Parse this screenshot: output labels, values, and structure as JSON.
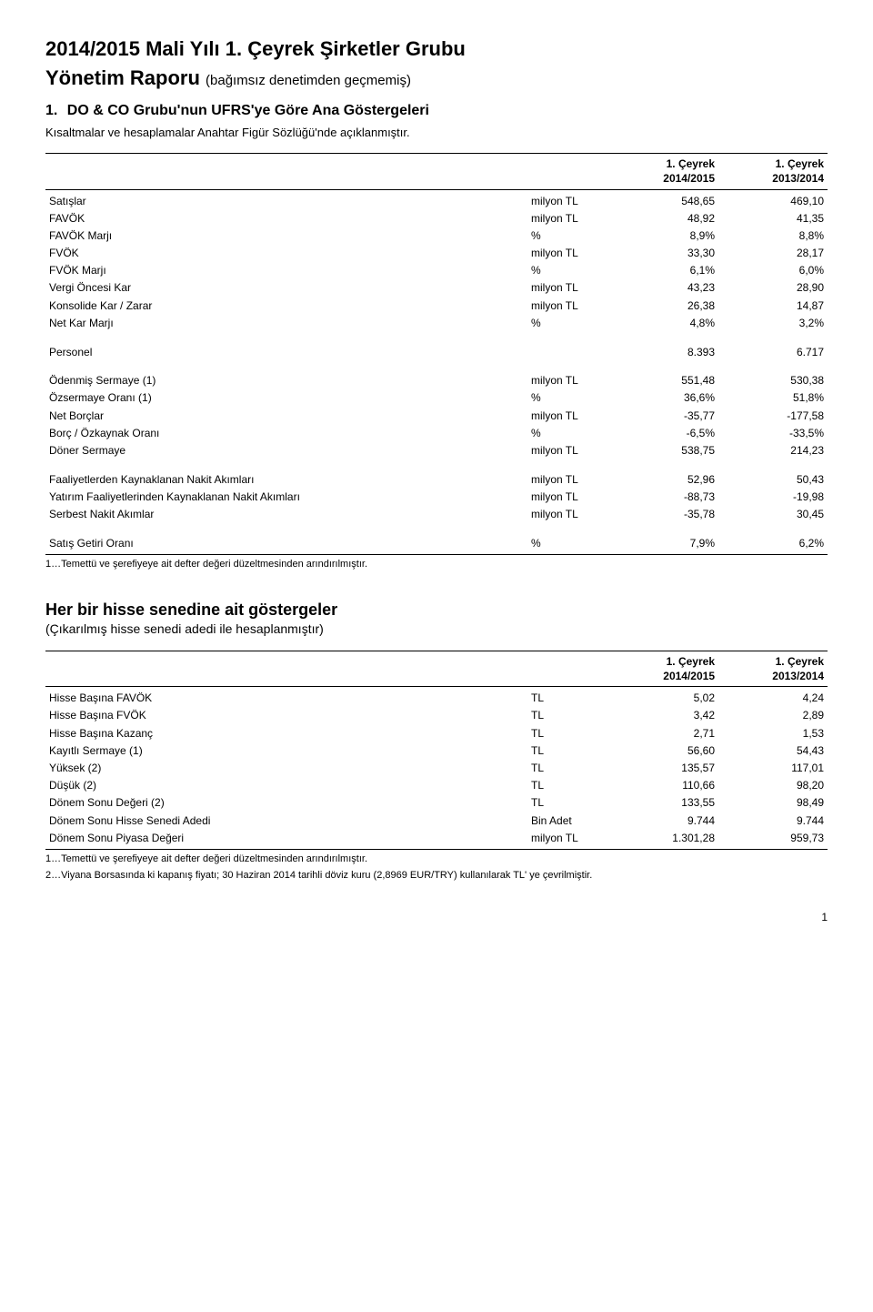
{
  "colors": {
    "text": "#000000",
    "background": "#ffffff",
    "rule": "#000000"
  },
  "fonts": {
    "body_family": "Verdana, Arial, sans-serif",
    "title_size_pt": 22,
    "body_size_pt": 12,
    "footnote_size_pt": 11
  },
  "title_line1": "2014/2015 Mali Yılı 1. Çeyrek Şirketler Grubu",
  "title_line2": "Yönetim Raporu",
  "title_paren": "(bağımsız denetimden geçmemiş)",
  "section_number": "1.",
  "section_title": "DO & CO Grubu'nun UFRS'ye Göre Ana Göstergeleri",
  "intro": "Kısaltmalar ve hesaplamalar Anahtar Figür Sözlüğü'nde açıklanmıştır.",
  "table1": {
    "header_col1": "",
    "header_col2_line1": "1. Çeyrek",
    "header_col2_line2": "2014/2015",
    "header_col3_line1": "1. Çeyrek",
    "header_col3_line2": "2013/2014",
    "groups": [
      {
        "rows": [
          {
            "label": "Satışlar",
            "unit": "milyon TL",
            "v1": "548,65",
            "v2": "469,10"
          },
          {
            "label": "FAVÖK",
            "unit": "milyon TL",
            "v1": "48,92",
            "v2": "41,35"
          },
          {
            "label": "FAVÖK Marjı",
            "unit": "%",
            "v1": "8,9%",
            "v2": "8,8%"
          },
          {
            "label": "FVÖK",
            "unit": "milyon TL",
            "v1": "33,30",
            "v2": "28,17"
          },
          {
            "label": "FVÖK Marjı",
            "unit": "%",
            "v1": "6,1%",
            "v2": "6,0%"
          },
          {
            "label": "Vergi Öncesi Kar",
            "unit": "milyon TL",
            "v1": "43,23",
            "v2": "28,90"
          },
          {
            "label": "Konsolide Kar / Zarar",
            "unit": "milyon TL",
            "v1": "26,38",
            "v2": "14,87"
          },
          {
            "label": "Net Kar Marjı",
            "unit": "%",
            "v1": "4,8%",
            "v2": "3,2%"
          }
        ]
      },
      {
        "rows": [
          {
            "label": "Personel",
            "unit": "",
            "v1": "8.393",
            "v2": "6.717"
          }
        ]
      },
      {
        "rows": [
          {
            "label": "Ödenmiş Sermaye (1)",
            "unit": "milyon TL",
            "v1": "551,48",
            "v2": "530,38"
          },
          {
            "label": "Özsermaye Oranı (1)",
            "unit": "%",
            "v1": "36,6%",
            "v2": "51,8%"
          },
          {
            "label": "Net Borçlar",
            "unit": "milyon TL",
            "v1": "-35,77",
            "v2": "-177,58"
          },
          {
            "label": "Borç / Özkaynak Oranı",
            "unit": "%",
            "v1": "-6,5%",
            "v2": "-33,5%"
          },
          {
            "label": "Döner Sermaye",
            "unit": "milyon TL",
            "v1": "538,75",
            "v2": "214,23"
          }
        ]
      },
      {
        "rows": [
          {
            "label": "Faaliyetlerden Kaynaklanan Nakit Akımları",
            "unit": "milyon TL",
            "v1": "52,96",
            "v2": "50,43"
          },
          {
            "label": "Yatırım Faaliyetlerinden Kaynaklanan Nakit Akımları",
            "unit": "milyon TL",
            "v1": "-88,73",
            "v2": "-19,98"
          },
          {
            "label": "Serbest Nakit Akımlar",
            "unit": "milyon TL",
            "v1": "-35,78",
            "v2": "30,45"
          }
        ]
      },
      {
        "rows": [
          {
            "label": "Satış Getiri Oranı",
            "unit": "%",
            "v1": "7,9%",
            "v2": "6,2%"
          }
        ]
      }
    ],
    "footnote": "1…Temettü ve şerefiyeye ait defter değeri düzeltmesinden arındırılmıştır."
  },
  "sub_heading": "Her bir hisse senedine ait göstergeler",
  "sub_heading_paren": "(Çıkarılmış hisse senedi adedi ile hesaplanmıştır)",
  "table2": {
    "header_col2_line1": "1. Çeyrek",
    "header_col2_line2": "2014/2015",
    "header_col3_line1": "1. Çeyrek",
    "header_col3_line2": "2013/2014",
    "rows": [
      {
        "label": "Hisse Başına FAVÖK",
        "unit": "TL",
        "v1": "5,02",
        "v2": "4,24"
      },
      {
        "label": "Hisse Başına FVÖK",
        "unit": "TL",
        "v1": "3,42",
        "v2": "2,89"
      },
      {
        "label": "Hisse Başına Kazanç",
        "unit": "TL",
        "v1": "2,71",
        "v2": "1,53"
      },
      {
        "label": "Kayıtlı Sermaye (1)",
        "unit": "TL",
        "v1": "56,60",
        "v2": "54,43"
      },
      {
        "label": "Yüksek (2)",
        "unit": "TL",
        "v1": "135,57",
        "v2": "117,01"
      },
      {
        "label": "Düşük (2)",
        "unit": "TL",
        "v1": "110,66",
        "v2": "98,20"
      },
      {
        "label": "Dönem Sonu Değeri (2)",
        "unit": "TL",
        "v1": "133,55",
        "v2": "98,49"
      },
      {
        "label": "Dönem Sonu Hisse Senedi Adedi",
        "unit": "Bin Adet",
        "v1": "9.744",
        "v2": "9.744"
      },
      {
        "label": "Dönem Sonu Piyasa Değeri",
        "unit": "milyon TL",
        "v1": "1.301,28",
        "v2": "959,73"
      }
    ],
    "footnote1": "1…Temettü ve şerefiyeye ait defter değeri düzeltmesinden arındırılmıştır.",
    "footnote2": "2…Viyana Borsasında ki kapanış fiyatı; 30 Haziran 2014 tarihli döviz kuru (2,8969 EUR/TRY) kullanılarak TL' ye çevrilmiştir."
  },
  "page_number": "1"
}
